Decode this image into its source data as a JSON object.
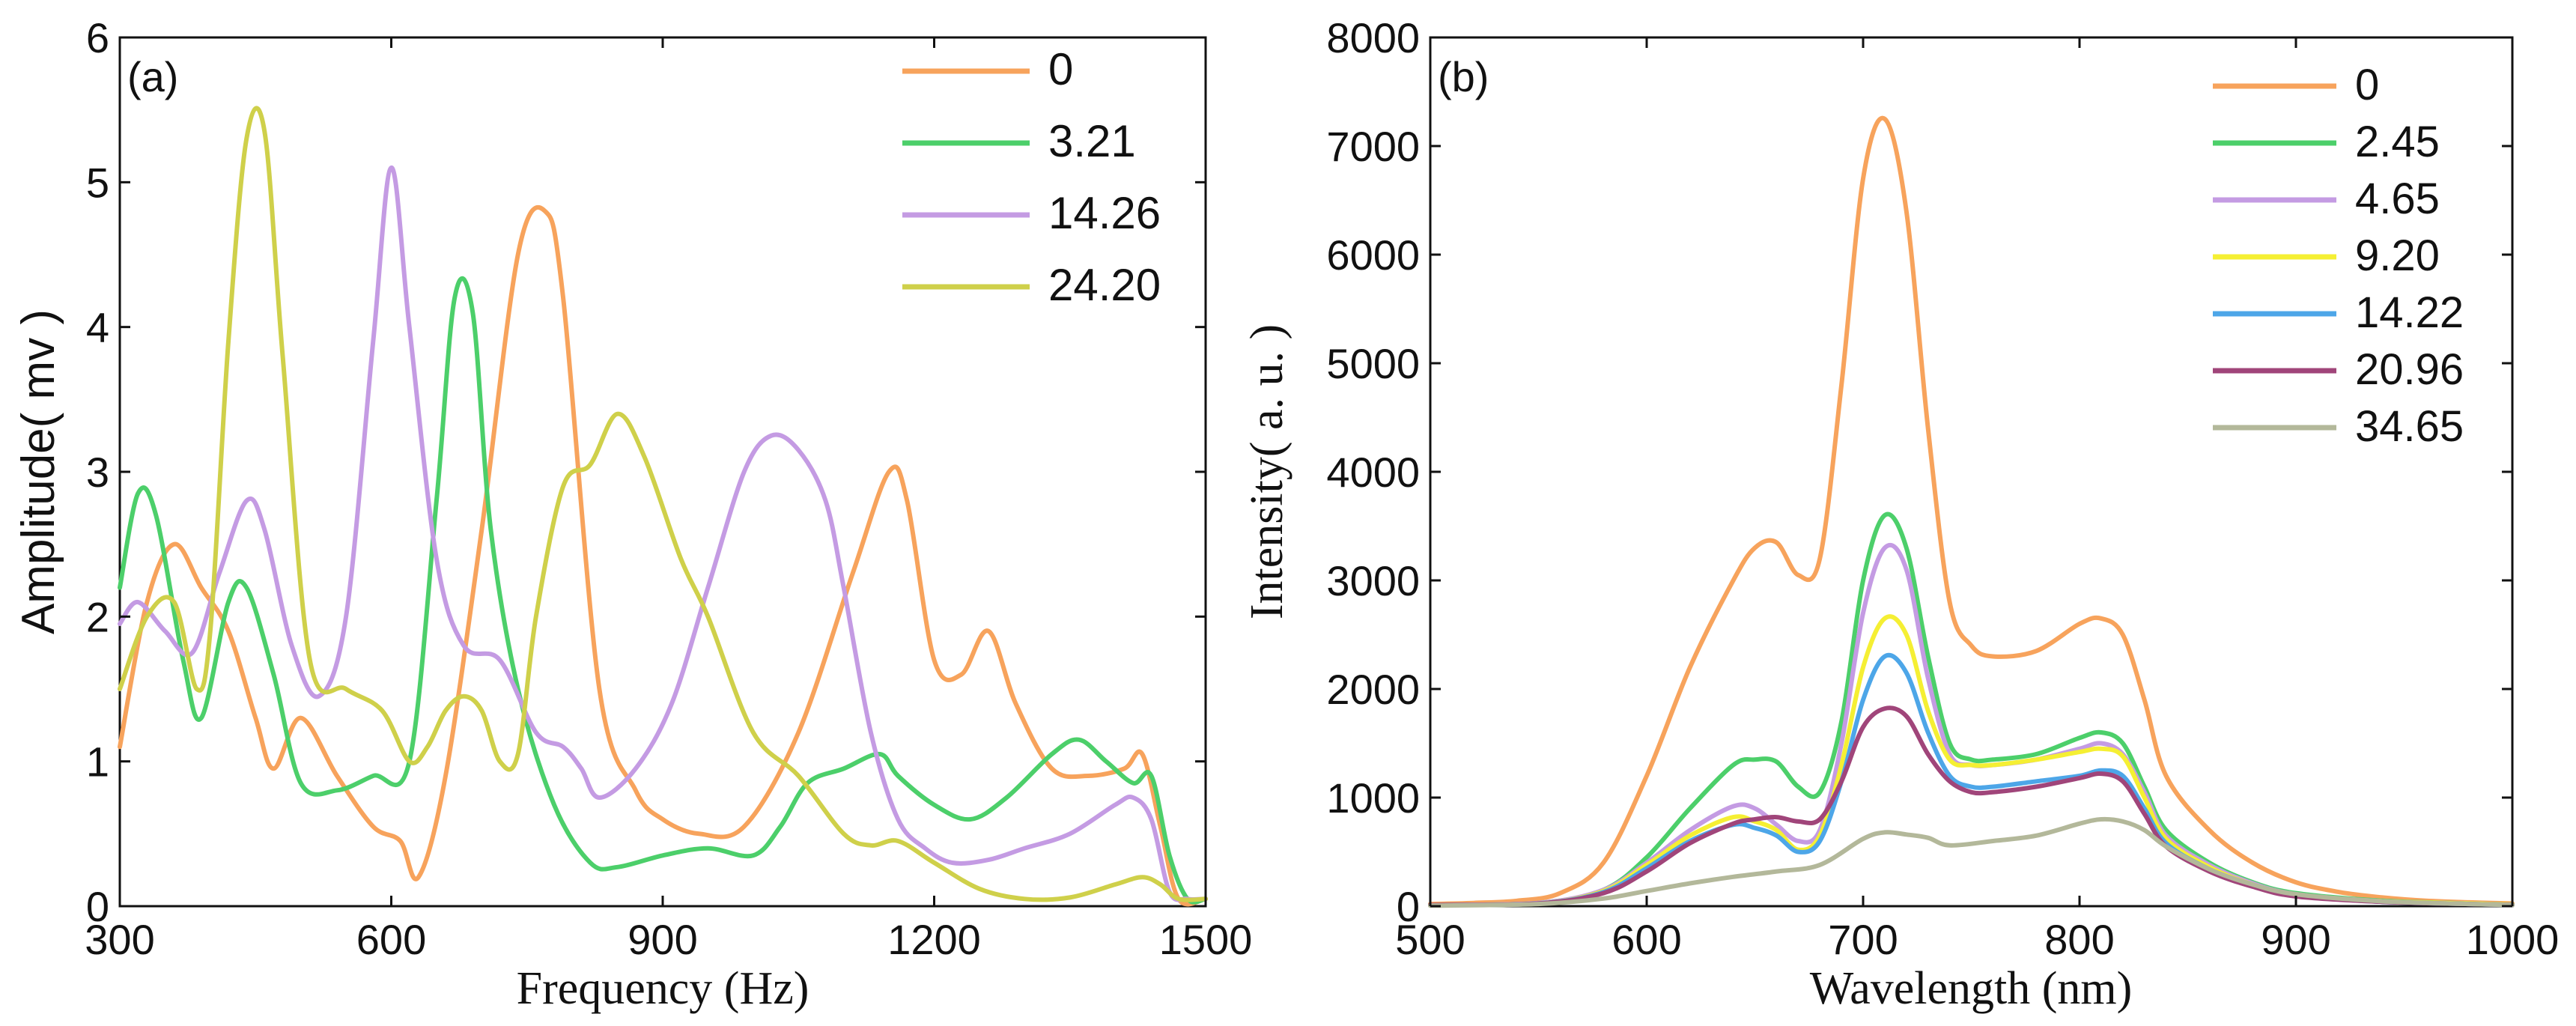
{
  "chart_data": [
    {
      "type": "line",
      "panel_label": "(a)",
      "xlabel": "Frequency (Hz)",
      "ylabel": "Amplitude( mv )",
      "xlim": [
        300,
        1500
      ],
      "ylim": [
        0,
        6
      ],
      "xticks": [
        "300",
        "600",
        "900",
        "1200",
        "1500"
      ],
      "yticks": [
        "0",
        "1",
        "2",
        "3",
        "4",
        "5",
        "6"
      ],
      "legend_position": "top-right",
      "series": [
        {
          "name": "0",
          "color": "#f7a35c",
          "x": [
            300,
            330,
            360,
            390,
            420,
            450,
            470,
            500,
            540,
            580,
            610,
            630,
            660,
            700,
            740,
            770,
            790,
            830,
            870,
            900,
            940,
            990,
            1050,
            1110,
            1150,
            1170,
            1200,
            1230,
            1260,
            1290,
            1330,
            1370,
            1410,
            1430,
            1450,
            1470,
            1500
          ],
          "y": [
            1.1,
            2.1,
            2.5,
            2.2,
            1.9,
            1.3,
            0.95,
            1.3,
            0.9,
            0.55,
            0.45,
            0.2,
            0.9,
            2.6,
            4.5,
            4.8,
            4.2,
            1.5,
            0.8,
            0.6,
            0.5,
            0.55,
            1.2,
            2.3,
            3.0,
            2.8,
            1.7,
            1.6,
            1.9,
            1.4,
            0.95,
            0.9,
            0.95,
            1.05,
            0.55,
            0.05,
            0.05
          ]
        },
        {
          "name": "3.21",
          "color": "#4ccf6a",
          "x": [
            300,
            320,
            340,
            370,
            390,
            420,
            440,
            470,
            500,
            540,
            580,
            620,
            650,
            670,
            690,
            710,
            740,
            780,
            820,
            850,
            900,
            950,
            1000,
            1030,
            1060,
            1100,
            1140,
            1160,
            1200,
            1240,
            1280,
            1330,
            1360,
            1390,
            1420,
            1440,
            1460,
            1480,
            1500
          ],
          "y": [
            2.2,
            2.85,
            2.7,
            1.7,
            1.3,
            2.1,
            2.2,
            1.6,
            0.85,
            0.8,
            0.9,
            1.0,
            2.8,
            4.2,
            4.1,
            2.6,
            1.5,
            0.7,
            0.3,
            0.27,
            0.35,
            0.4,
            0.35,
            0.55,
            0.85,
            0.95,
            1.05,
            0.9,
            0.7,
            0.6,
            0.75,
            1.05,
            1.15,
            1.0,
            0.85,
            0.9,
            0.35,
            0.05,
            0.05
          ]
        },
        {
          "name": "14.26",
          "color": "#c49be3",
          "x": [
            300,
            320,
            350,
            380,
            410,
            440,
            460,
            490,
            520,
            550,
            580,
            600,
            620,
            650,
            680,
            720,
            760,
            790,
            810,
            830,
            870,
            910,
            950,
            990,
            1020,
            1050,
            1080,
            1100,
            1130,
            1160,
            1190,
            1220,
            1260,
            1300,
            1350,
            1400,
            1420,
            1440,
            1460,
            1480,
            1500
          ],
          "y": [
            1.95,
            2.1,
            1.9,
            1.75,
            2.3,
            2.8,
            2.6,
            1.8,
            1.45,
            2.0,
            3.9,
            5.1,
            4.0,
            2.4,
            1.8,
            1.7,
            1.2,
            1.1,
            0.95,
            0.75,
            0.95,
            1.4,
            2.2,
            3.0,
            3.25,
            3.15,
            2.8,
            2.2,
            1.2,
            0.6,
            0.4,
            0.3,
            0.32,
            0.4,
            0.5,
            0.7,
            0.75,
            0.6,
            0.1,
            0.05,
            0.05
          ]
        },
        {
          "name": "24.20",
          "color": "#cfd04a",
          "x": [
            300,
            330,
            360,
            385,
            400,
            420,
            440,
            460,
            480,
            510,
            550,
            590,
            620,
            640,
            660,
            680,
            700,
            720,
            740,
            760,
            790,
            820,
            850,
            880,
            920,
            950,
            1000,
            1050,
            1100,
            1130,
            1160,
            1200,
            1250,
            1300,
            1350,
            1400,
            1430,
            1450,
            1470,
            1500
          ],
          "y": [
            1.5,
            2.0,
            2.1,
            1.5,
            1.9,
            3.9,
            5.3,
            5.35,
            3.8,
            1.7,
            1.5,
            1.35,
            1.0,
            1.1,
            1.35,
            1.45,
            1.35,
            1.0,
            1.05,
            2.0,
            2.9,
            3.05,
            3.4,
            3.1,
            2.4,
            2.0,
            1.2,
            0.9,
            0.5,
            0.42,
            0.45,
            0.3,
            0.12,
            0.05,
            0.06,
            0.15,
            0.2,
            0.15,
            0.05,
            0.05
          ]
        }
      ]
    },
    {
      "type": "line",
      "panel_label": "(b)",
      "xlabel": "Wavelength (nm)",
      "ylabel": "Intensity( a. u. )",
      "xlim": [
        500,
        1000
      ],
      "ylim": [
        0,
        8000
      ],
      "xticks": [
        "500",
        "600",
        "700",
        "800",
        "900",
        "1000"
      ],
      "yticks": [
        "0",
        "1000",
        "2000",
        "3000",
        "4000",
        "5000",
        "6000",
        "7000",
        "8000"
      ],
      "legend_position": "top-right",
      "series": [
        {
          "name": "0",
          "color": "#f7a35c",
          "x": [
            500,
            520,
            540,
            560,
            580,
            600,
            620,
            640,
            650,
            660,
            670,
            680,
            690,
            700,
            710,
            720,
            730,
            740,
            750,
            760,
            780,
            800,
            810,
            820,
            830,
            840,
            860,
            880,
            900,
            920,
            940,
            960,
            980,
            1000
          ],
          "y": [
            20,
            30,
            50,
            120,
            400,
            1200,
            2200,
            3000,
            3300,
            3350,
            3050,
            3200,
            4800,
            6700,
            7250,
            6400,
            4400,
            2800,
            2400,
            2300,
            2350,
            2600,
            2650,
            2500,
            1900,
            1200,
            700,
            400,
            220,
            130,
            80,
            50,
            35,
            25
          ]
        },
        {
          "name": "2.45",
          "color": "#4ccf6a",
          "x": [
            500,
            550,
            580,
            600,
            620,
            640,
            650,
            660,
            670,
            680,
            690,
            700,
            710,
            720,
            730,
            740,
            750,
            760,
            780,
            800,
            810,
            820,
            830,
            840,
            860,
            880,
            900,
            940,
            980,
            1000
          ],
          "y": [
            10,
            30,
            150,
            450,
            900,
            1300,
            1350,
            1330,
            1100,
            1050,
            1700,
            3000,
            3600,
            3300,
            2300,
            1500,
            1350,
            1350,
            1400,
            1550,
            1600,
            1500,
            1100,
            700,
            400,
            220,
            120,
            50,
            25,
            15
          ]
        },
        {
          "name": "4.65",
          "color": "#c49be3",
          "x": [
            500,
            550,
            580,
            600,
            620,
            640,
            650,
            660,
            670,
            680,
            690,
            700,
            710,
            720,
            730,
            740,
            750,
            760,
            780,
            800,
            810,
            820,
            830,
            840,
            860,
            880,
            900,
            940,
            980,
            1000
          ],
          "y": [
            10,
            30,
            150,
            400,
            700,
            920,
            900,
            750,
            600,
            700,
            1500,
            2700,
            3300,
            3100,
            2100,
            1400,
            1300,
            1300,
            1350,
            1450,
            1500,
            1400,
            1050,
            650,
            380,
            210,
            110,
            45,
            25,
            15
          ]
        },
        {
          "name": "9.20",
          "color": "#f5ef33",
          "x": [
            500,
            550,
            580,
            600,
            620,
            640,
            650,
            660,
            670,
            680,
            690,
            700,
            710,
            720,
            730,
            740,
            750,
            760,
            780,
            800,
            810,
            820,
            830,
            840,
            860,
            880,
            900,
            940,
            980,
            1000
          ],
          "y": [
            10,
            25,
            140,
            380,
            650,
            820,
            780,
            700,
            520,
            650,
            1300,
            2200,
            2650,
            2500,
            1800,
            1350,
            1300,
            1300,
            1350,
            1420,
            1450,
            1380,
            1000,
            620,
            360,
            200,
            100,
            45,
            25,
            15
          ]
        },
        {
          "name": "14.22",
          "color": "#4da6e8",
          "x": [
            500,
            550,
            580,
            600,
            620,
            640,
            650,
            660,
            670,
            680,
            690,
            700,
            710,
            720,
            730,
            740,
            750,
            760,
            780,
            800,
            810,
            820,
            830,
            840,
            860,
            880,
            900,
            940,
            980,
            1000
          ],
          "y": [
            10,
            25,
            130,
            350,
            600,
            750,
            720,
            650,
            500,
            600,
            1150,
            1900,
            2300,
            2150,
            1600,
            1200,
            1100,
            1100,
            1150,
            1200,
            1250,
            1200,
            900,
            580,
            340,
            190,
            95,
            40,
            20,
            12
          ]
        },
        {
          "name": "20.96",
          "color": "#a0457a",
          "x": [
            500,
            550,
            580,
            600,
            620,
            640,
            650,
            660,
            670,
            680,
            690,
            700,
            710,
            720,
            730,
            740,
            750,
            760,
            780,
            800,
            810,
            820,
            830,
            840,
            860,
            880,
            900,
            940,
            980,
            1000
          ],
          "y": [
            10,
            25,
            120,
            320,
            580,
            760,
            800,
            820,
            780,
            800,
            1150,
            1650,
            1820,
            1750,
            1400,
            1150,
            1050,
            1050,
            1100,
            1180,
            1220,
            1150,
            850,
            550,
            320,
            180,
            90,
            40,
            20,
            12
          ]
        },
        {
          "name": "34.65",
          "color": "#b3b89a",
          "x": [
            500,
            550,
            580,
            600,
            620,
            640,
            660,
            680,
            700,
            710,
            720,
            730,
            740,
            760,
            780,
            800,
            810,
            820,
            830,
            840,
            860,
            880,
            900,
            940,
            980,
            1000
          ],
          "y": [
            5,
            20,
            70,
            140,
            210,
            270,
            320,
            380,
            620,
            680,
            660,
            630,
            560,
            600,
            650,
            760,
            800,
            780,
            700,
            550,
            340,
            200,
            110,
            45,
            20,
            10
          ]
        }
      ]
    }
  ]
}
